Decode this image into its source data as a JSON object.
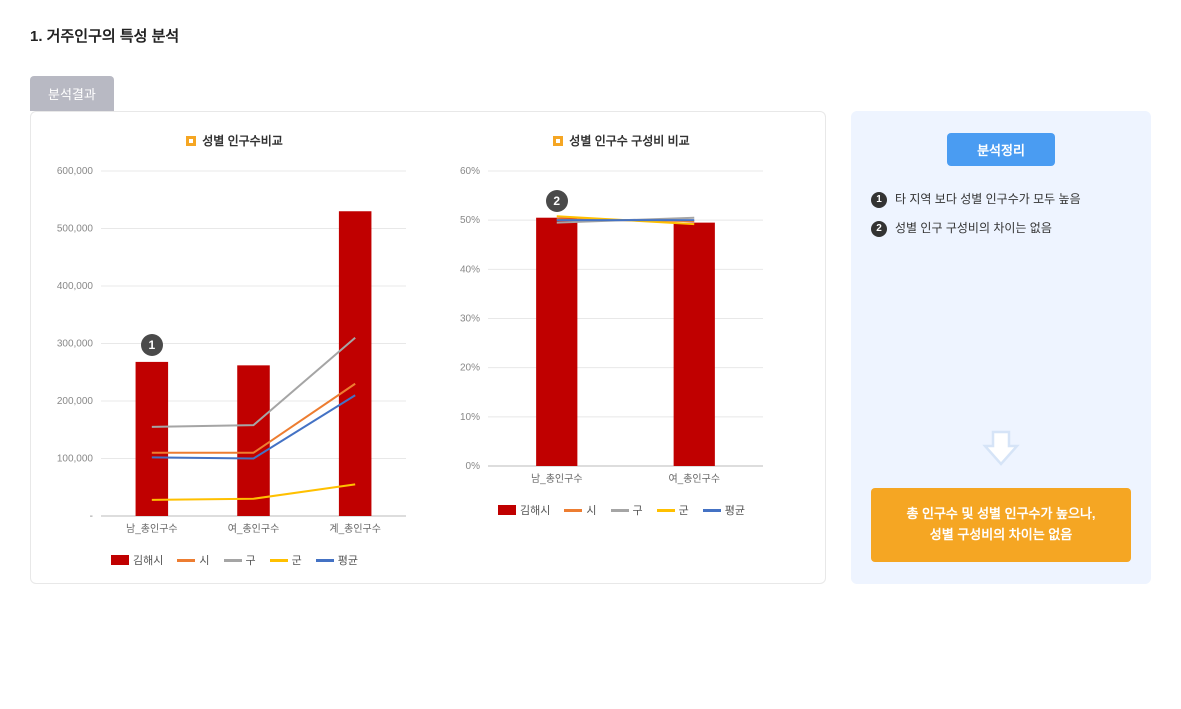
{
  "title": "1. 거주인구의 특성 분석",
  "tab_label": "분석결과",
  "chart1": {
    "title": "성별 인구수비교",
    "type": "combo-bar-line",
    "categories": [
      "남_총인구수",
      "여_총인구수",
      "계_총인구수"
    ],
    "bar": {
      "name": "김해시",
      "values": [
        268000,
        262000,
        530000
      ],
      "color": "#c00000"
    },
    "lines": [
      {
        "name": "시",
        "values": [
          110000,
          110000,
          230000
        ],
        "color": "#ed7d31",
        "width": 2
      },
      {
        "name": "구",
        "values": [
          155000,
          158000,
          310000
        ],
        "color": "#a5a5a5",
        "width": 2
      },
      {
        "name": "군",
        "values": [
          28000,
          30000,
          55000
        ],
        "color": "#ffc000",
        "width": 2
      },
      {
        "name": "평균",
        "values": [
          102000,
          100000,
          210000
        ],
        "color": "#4472c4",
        "width": 2
      }
    ],
    "ylim": [
      0,
      600000
    ],
    "ytick_step": 100000,
    "ytick_labels": [
      "-",
      "100,000",
      "200,000",
      "300,000",
      "400,000",
      "500,000",
      "600,000"
    ],
    "bar_width": 0.32,
    "background_color": "#ffffff",
    "grid_color": "#e8e8e8",
    "badge": {
      "num": "1",
      "cat_index": 0
    }
  },
  "chart2": {
    "title": "성별 인구수 구성비 비교",
    "type": "combo-bar-line",
    "categories": [
      "남_총인구수",
      "여_총인구수"
    ],
    "bar": {
      "name": "김해시",
      "values": [
        50.5,
        49.5
      ],
      "color": "#c00000"
    },
    "lines": [
      {
        "name": "시",
        "values": [
          50.2,
          49.8
        ],
        "color": "#ed7d31",
        "width": 2
      },
      {
        "name": "구",
        "values": [
          49.5,
          50.5
        ],
        "color": "#a5a5a5",
        "width": 2
      },
      {
        "name": "군",
        "values": [
          50.8,
          49.2
        ],
        "color": "#ffc000",
        "width": 2
      },
      {
        "name": "평균",
        "values": [
          50,
          50
        ],
        "color": "#4472c4",
        "width": 2
      }
    ],
    "ylim": [
      0,
      60
    ],
    "ytick_step": 10,
    "ytick_labels": [
      "0%",
      "10%",
      "20%",
      "30%",
      "40%",
      "50%",
      "60%"
    ],
    "bar_width": 0.3,
    "background_color": "#ffffff",
    "grid_color": "#e8e8e8",
    "badge": {
      "num": "2",
      "cat_index": 0
    }
  },
  "legend_items": [
    {
      "label": "김해시",
      "type": "bar",
      "color": "#c00000"
    },
    {
      "label": "시",
      "type": "line",
      "color": "#ed7d31"
    },
    {
      "label": "구",
      "type": "line",
      "color": "#a5a5a5"
    },
    {
      "label": "군",
      "type": "line",
      "color": "#ffc000"
    },
    {
      "label": "평균",
      "type": "line",
      "color": "#4472c4"
    }
  ],
  "side": {
    "badge": "분석정리",
    "bullets": [
      "타 지역 보다 성별 인구수가 모두 높음",
      "성별 인구 구성비의 차이는 없음"
    ],
    "arrow_stroke": "#d6e4f7",
    "arrow_fill": "#ffffff",
    "conclusion": "총 인구수 및 성별 인구수가 높으나,\n성별 구성비의 차이는 없음",
    "conclusion_bg": "#f5a623"
  }
}
